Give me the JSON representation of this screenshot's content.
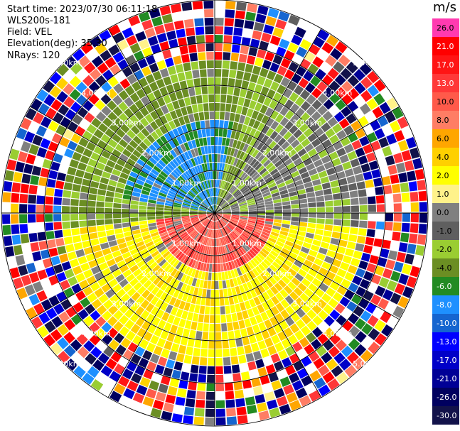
{
  "header": {
    "start_time": "Start time: 2023/07/30 06:11:18",
    "instrument": "WLS200s-181",
    "field": "Field: VEL",
    "elevation": "Elevation(deg): 35.30",
    "nrays": "NRays: 120"
  },
  "colorbar": {
    "unit": "m/s",
    "ticks": [
      "26.0",
      "21.0",
      "17.0",
      "13.0",
      "10.0",
      "8.0",
      "6.0",
      "4.0",
      "2.0",
      "1.0",
      "0.0",
      "-1.0",
      "-2.0",
      "-4.0",
      "-6.0",
      "-8.0",
      "-10.0",
      "-13.0",
      "-17.0",
      "-21.0",
      "-26.0",
      "-30.0"
    ],
    "colors": [
      "#ff3ab0",
      "#ff0000",
      "#ff1515",
      "#ff3838",
      "#ff5a4a",
      "#ff7d64",
      "#ffa600",
      "#ffd000",
      "#ffff00",
      "#fff28a",
      "#808080",
      "#5f5f5f",
      "#9acd32",
      "#6b8e23",
      "#228b22",
      "#1e90ff",
      "#1565d0",
      "#0000ff",
      "#0000c8",
      "#000096",
      "#00005f",
      "#12124a"
    ]
  },
  "chart_data": {
    "type": "heatmap",
    "projection": "polar PPI",
    "field": "VEL",
    "units": "m/s",
    "elevation_deg": 35.3,
    "n_rays": 120,
    "range_rings_km": [
      1,
      2,
      3,
      4,
      5
    ],
    "range_ring_labels": [
      "1.00km",
      "2.00km",
      "3.00km",
      "4.00km",
      "5.00km"
    ],
    "value_range": [
      -30,
      26
    ],
    "pattern": [
      {
        "region": "north-west, 0-2 km",
        "velocity_m_s": -8
      },
      {
        "region": "north, 1-3 km",
        "velocity_m_s": -4
      },
      {
        "region": "south, 0-1.5 km",
        "velocity_m_s": 10
      },
      {
        "region": "south/east, 1-3 km",
        "velocity_m_s": 3
      },
      {
        "region": "beyond 3.5 km",
        "velocity_m_s": "noise (full range)"
      }
    ],
    "grid": true
  }
}
